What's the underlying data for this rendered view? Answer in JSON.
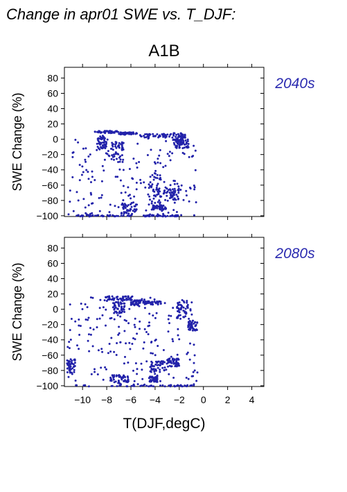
{
  "page": {
    "title": "Change in apr01 SWE vs. T_DJF:",
    "scenario": "A1B"
  },
  "colors": {
    "points": "#2222aa",
    "period_label": "#2a2ab0",
    "axes": "#000000"
  },
  "chart_data": [
    {
      "type": "scatter",
      "period_label": "2040s",
      "ylabel": "SWE Change (%)",
      "xlim": [
        -11.5,
        5
      ],
      "ylim": [
        -101,
        94
      ],
      "xticks": [
        -10,
        -8,
        -6,
        -4,
        -2,
        0,
        2,
        4
      ],
      "yticks": [
        80,
        60,
        40,
        20,
        0,
        -20,
        -40,
        -60,
        -80,
        -100
      ],
      "show_xtick_labels": false,
      "bands": [
        {
          "x": [
            -9.0,
            -7.0
          ],
          "y": [
            8,
            11
          ]
        },
        {
          "x": [
            -7.0,
            -5.5
          ],
          "y": [
            6,
            9
          ]
        },
        {
          "x": [
            -5.3,
            -2.5
          ],
          "y": [
            2,
            7
          ]
        },
        {
          "x": [
            -2.5,
            -1.5
          ],
          "y": [
            -2,
            8
          ]
        },
        {
          "x": [
            -2.3,
            -1.2
          ],
          "y": [
            -12,
            0
          ]
        },
        {
          "x": [
            -8.8,
            -8.0
          ],
          "y": [
            -12,
            4
          ]
        },
        {
          "x": [
            -7.8,
            -6.6
          ],
          "y": [
            -30,
            -4
          ]
        },
        {
          "x": [
            -4.5,
            -3.5
          ],
          "y": [
            -85,
            -40
          ]
        },
        {
          "x": [
            -4.2,
            -3.0
          ],
          "y": [
            -92,
            -86
          ]
        },
        {
          "x": [
            -6.8,
            -5.5
          ],
          "y": [
            -98,
            -82
          ]
        },
        {
          "x": [
            -3.3,
            -2.0
          ],
          "y": [
            -80,
            -64
          ]
        },
        {
          "x": [
            -10.5,
            -5.8
          ],
          "y": [
            -101,
            -99
          ]
        },
        {
          "x": [
            -5.0,
            -2.0
          ],
          "y": [
            -101,
            -99
          ]
        }
      ],
      "scatter": {
        "x": [
          -11.2,
          -0.6
        ],
        "y": [
          -100,
          5
        ]
      },
      "counts": {
        "band": 45,
        "scatter": 190
      }
    },
    {
      "type": "scatter",
      "period_label": "2080s",
      "ylabel": "SWE Change (%)",
      "xlabel": "T(DJF,degC)",
      "xlim": [
        -11.5,
        5
      ],
      "ylim": [
        -101,
        94
      ],
      "xticks": [
        -10,
        -8,
        -6,
        -4,
        -2,
        0,
        2,
        4
      ],
      "xtick_labels": [
        "−10",
        "−8",
        "−6",
        "−4",
        "−2",
        "0",
        "2",
        "4"
      ],
      "yticks": [
        80,
        60,
        40,
        20,
        0,
        -20,
        -40,
        -60,
        -80,
        -100
      ],
      "show_xtick_labels": true,
      "bands": [
        {
          "x": [
            -8.2,
            -5.8
          ],
          "y": [
            12,
            17
          ]
        },
        {
          "x": [
            -7.5,
            -6.5
          ],
          "y": [
            -5,
            10
          ]
        },
        {
          "x": [
            -6.0,
            -5.2
          ],
          "y": [
            5,
            12
          ]
        },
        {
          "x": [
            -5.0,
            -3.5
          ],
          "y": [
            6,
            11
          ]
        },
        {
          "x": [
            -2.2,
            -1.2
          ],
          "y": [
            -15,
            12
          ]
        },
        {
          "x": [
            -1.3,
            -0.5
          ],
          "y": [
            -28,
            -15
          ]
        },
        {
          "x": [
            -4.4,
            -3.0
          ],
          "y": [
            -82,
            -68
          ]
        },
        {
          "x": [
            -3.0,
            -2.0
          ],
          "y": [
            -75,
            -64
          ]
        },
        {
          "x": [
            -4.5,
            -3.8
          ],
          "y": [
            -95,
            -88
          ]
        },
        {
          "x": [
            -7.8,
            -6.2
          ],
          "y": [
            -98,
            -86
          ]
        },
        {
          "x": [
            -10.8,
            -0.8
          ],
          "y": [
            -101,
            -99
          ]
        },
        {
          "x": [
            -11.3,
            -10.6
          ],
          "y": [
            -85,
            -65
          ]
        }
      ],
      "scatter": {
        "x": [
          -11.3,
          -0.5
        ],
        "y": [
          -100,
          16
        ]
      },
      "counts": {
        "band": 45,
        "scatter": 200
      }
    }
  ]
}
